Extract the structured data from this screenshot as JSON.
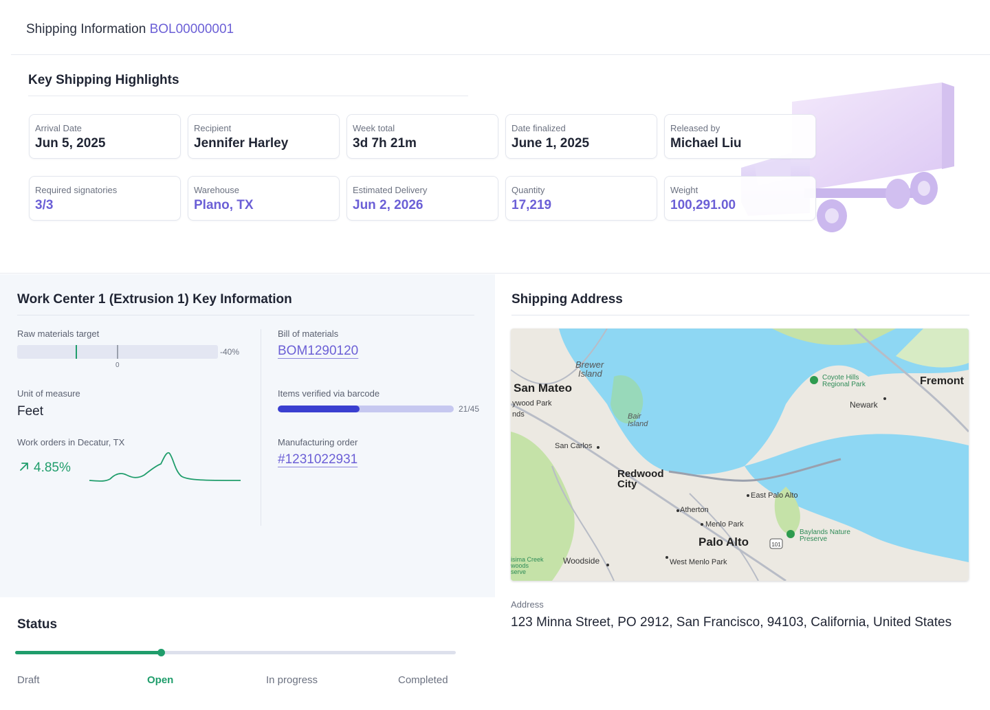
{
  "header": {
    "title": "Shipping Information",
    "bol": "BOL00000001"
  },
  "highlights": {
    "title": "Key Shipping Highlights",
    "cards": [
      {
        "label": "Arrival Date",
        "value": "Jun 5, 2025"
      },
      {
        "label": "Recipient",
        "value": "Jennifer Harley"
      },
      {
        "label": "Week total",
        "value": "3d 7h 21m"
      },
      {
        "label": "Date finalized",
        "value": "June 1, 2025"
      },
      {
        "label": "Released by",
        "value": "Michael Liu"
      },
      {
        "label": "Required signatories",
        "value": "3/3"
      },
      {
        "label": "Warehouse",
        "value": "Plano, TX"
      },
      {
        "label": "Estimated Delivery",
        "value": "Jun 2, 2026"
      },
      {
        "label": "Quantity",
        "value": "17,219"
      },
      {
        "label": "Weight",
        "value": "100,291.00"
      }
    ]
  },
  "work_center": {
    "title": "Work Center 1 (Extrusion 1) Key Information",
    "raw_materials": {
      "label": "Raw materials target",
      "percent": "-40%",
      "zero_label": "0"
    },
    "unit": {
      "label": "Unit of measure",
      "value": "Feet"
    },
    "work_orders": {
      "label": "Work orders in Decatur, TX",
      "trend": "4.85%",
      "trend_icon": "arrow-up-right-icon"
    },
    "bom": {
      "label": "Bill of materials",
      "value": "BOM1290120"
    },
    "barcode": {
      "label": "Items verified via barcode",
      "count": "21/45",
      "verified": 21,
      "total": 45
    },
    "mo": {
      "label": "Manufacturing order",
      "value": "#1231022931"
    }
  },
  "status": {
    "title": "Status",
    "steps": [
      "Draft",
      "Open",
      "In progress",
      "Completed"
    ],
    "current_step": "Open"
  },
  "shipping": {
    "title": "Shipping Address",
    "map_labels": {
      "brewer": "Brewer Island",
      "san_mateo": "San Mateo",
      "haywood": "ywood Park",
      "nds": "nds",
      "bair": "Bair Island",
      "san_carlos": "San Carlos",
      "redwood": "Redwood City",
      "atherton": "Atherton",
      "menlo": "Menlo Park",
      "palo_alto": "Palo Alto",
      "east_palo_alto": "East Palo Alto",
      "woodside": "Woodside",
      "west_menlo": "West Menlo Park",
      "coyote": "Coyote Hills Regional Park",
      "fremont": "Fremont",
      "newark": "Newark",
      "baylands": "Baylands Nature Preserve",
      "purisima": "isima Creek woods serve",
      "hwy": "101"
    },
    "address_label": "Address",
    "address": "123 Minna Street, PO 2912, San Francisco, 94103, California, United States"
  },
  "colors": {
    "accent": "#6b5fd6",
    "success": "#1f9d6b",
    "barcode_fill": "#3a3fd0",
    "water": "#8ed7f3",
    "land": "#ece9e2",
    "park": "#c5e2a8"
  }
}
